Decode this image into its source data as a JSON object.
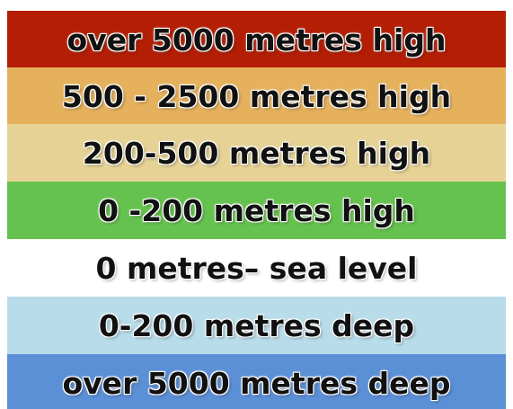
{
  "legend": {
    "bands": [
      {
        "label": "over 5000 metres high",
        "color": "#b31e05"
      },
      {
        "label": "500 - 2500 metres high",
        "color": "#e5b15c"
      },
      {
        "label": "200-500 metres high",
        "color": "#e6d294"
      },
      {
        "label": "0 -200 metres high",
        "color": "#66c24e"
      },
      {
        "label": "0 metres– sea level",
        "color": "#ffffff"
      },
      {
        "label": "0-200 metres deep",
        "color": "#b8dce9"
      },
      {
        "label": "over 5000 metres deep",
        "color": "#5b8fd6"
      }
    ]
  }
}
